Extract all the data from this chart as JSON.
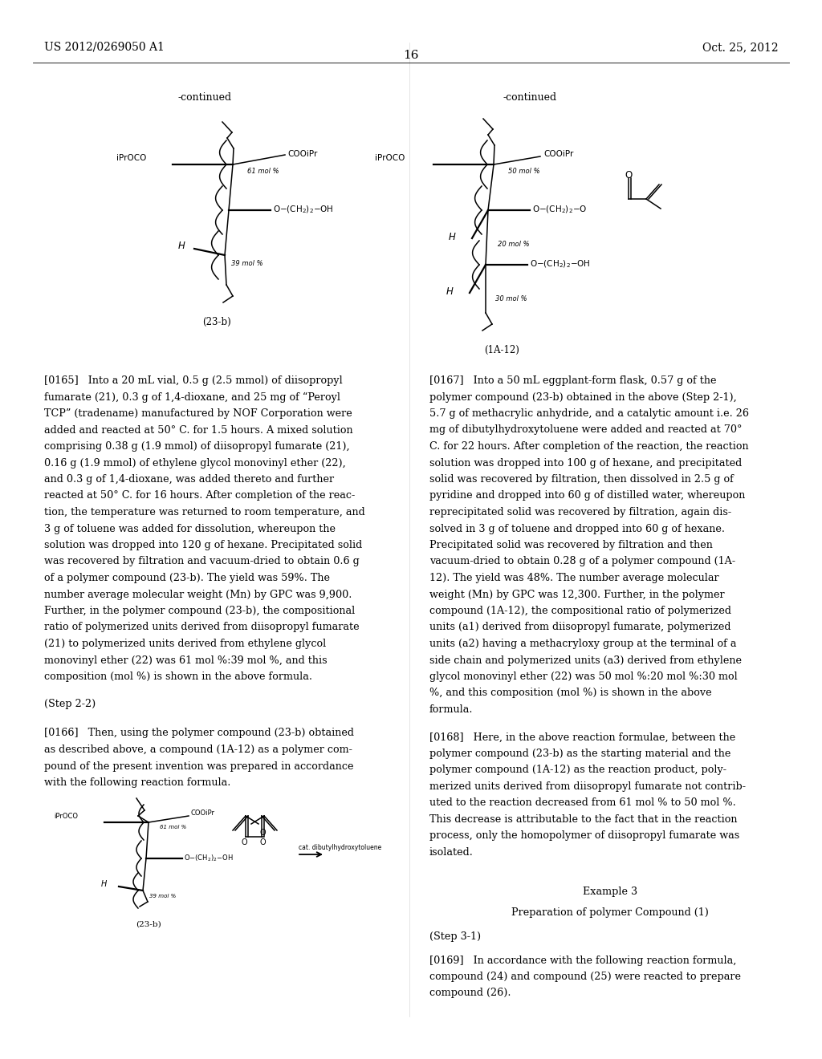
{
  "page_number": "16",
  "header_left": "US 2012/0269050 A1",
  "header_right": "Oct. 25, 2012",
  "background_color": "#ffffff",
  "text_color": "#000000",
  "body_fontsize": 9.2,
  "label_fontsize": 7.5,
  "small_label_fontsize": 6.0,
  "structure_label_fontsize": 8.5
}
